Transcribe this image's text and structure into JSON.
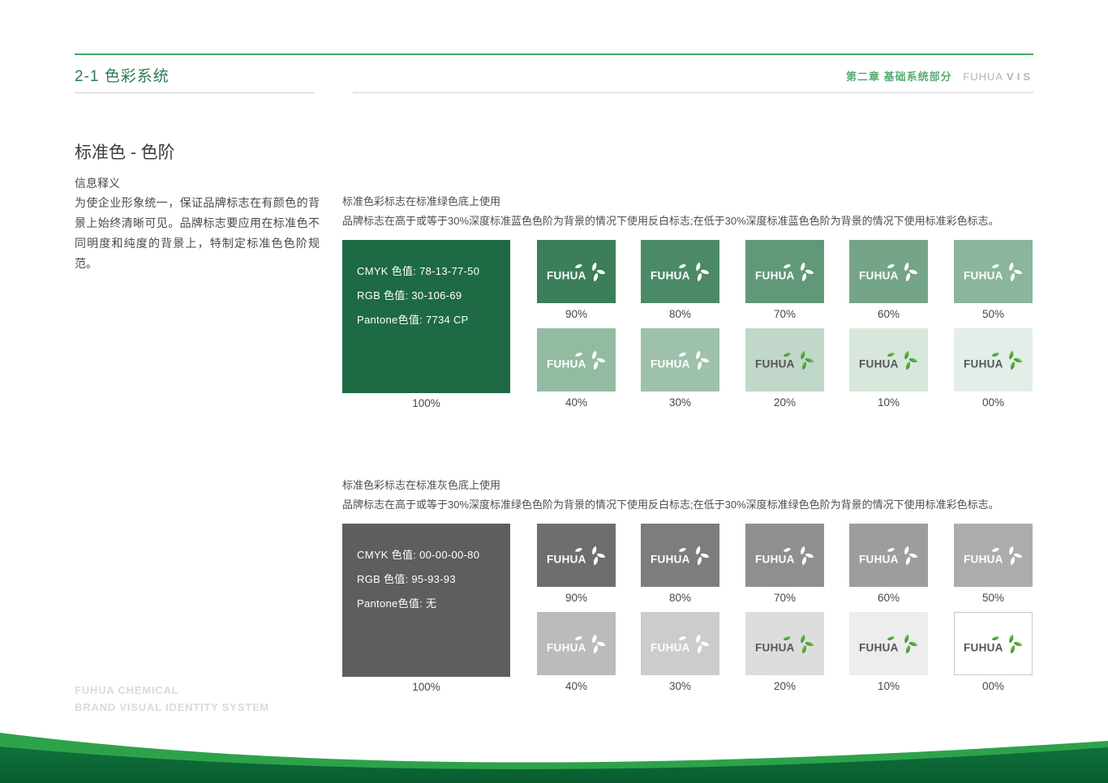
{
  "header": {
    "title": "2-1 色彩系统",
    "chapter": "第二章 基础系统部分",
    "brand_text": "FUHUA",
    "brand_suffix": "VIS"
  },
  "left_panel": {
    "section_title": "标准色 - 色阶",
    "info_label": "信息释义",
    "info_text": "为使企业形象统一，保证品牌标志在有颜色的背景上始终清晰可见。品牌标志要应用在标准色不同明度和纯度的背景上，特制定标准色色阶规范。"
  },
  "brand": {
    "logo_text": "FUHUA"
  },
  "footer": {
    "line1": "FUHUA CHEMICAL",
    "line2": "BRAND VISUAL IDENTITY SYSTEM"
  },
  "colors": {
    "accent_green": "#43a85f",
    "title_green": "#2b7b52",
    "standard_green": "#1E6A45",
    "standard_gray": "#5F5D5D",
    "wave_light_green": "#2ea24b",
    "wave_dark_green": "#0e6b38",
    "leaf_gradient_from": "#a8d23f",
    "leaf_gradient_to": "#00833e",
    "logo_word_dark": "#55565a"
  },
  "groups": [
    {
      "heading": "标准色彩标志在标准绿色底上使用",
      "subheading": "品牌标志在高于或等于30%深度标准蓝色色阶为背景的情况下使用反白标志;在低于30%深度标准蓝色色阶为背景的情况下使用标准彩色标志。",
      "main_swatch": {
        "label": "100%",
        "bg": "#1E6A45",
        "values": [
          "CMYK 色值:  78-13-77-50",
          "RGB  色值:  30-106-69",
          "Pantone色值:  7734 CP"
        ]
      },
      "swatches": [
        {
          "label": "90%",
          "bg": "#3b7e59",
          "logo": "white",
          "border": false
        },
        {
          "label": "80%",
          "bg": "#4c8a67",
          "logo": "white",
          "border": false
        },
        {
          "label": "70%",
          "bg": "#609878",
          "logo": "white",
          "border": false
        },
        {
          "label": "60%",
          "bg": "#74a588",
          "logo": "white",
          "border": false
        },
        {
          "label": "50%",
          "bg": "#8bb59c",
          "logo": "white",
          "border": false
        },
        {
          "label": "40%",
          "bg": "#92bba2",
          "logo": "white",
          "border": false
        },
        {
          "label": "30%",
          "bg": "#9ec1ac",
          "logo": "white",
          "border": false
        },
        {
          "label": "20%",
          "bg": "#c0d7c9",
          "logo": "color",
          "border": false
        },
        {
          "label": "10%",
          "bg": "#d7e7dc",
          "logo": "color",
          "border": false
        },
        {
          "label": "00%",
          "bg": "#e2eee7",
          "logo": "color",
          "border": false
        }
      ]
    },
    {
      "heading": "标准色彩标志在标准灰色底上使用",
      "subheading": "品牌标志在高于或等于30%深度标准绿色色阶为背景的情况下使用反白标志;在低于30%深度标准绿色色阶为背景的情况下使用标准彩色标志。",
      "main_swatch": {
        "label": "100%",
        "bg": "#5F5D5D",
        "values": [
          "CMYK 色值:  00-00-00-80",
          "RGB  色值:  95-93-93",
          "Pantone色值:  无"
        ]
      },
      "swatches": [
        {
          "label": "90%",
          "bg": "#6f6d6d",
          "logo": "white",
          "border": false
        },
        {
          "label": "80%",
          "bg": "#7e7c7c",
          "logo": "white",
          "border": false
        },
        {
          "label": "70%",
          "bg": "#908e8e",
          "logo": "white",
          "border": false
        },
        {
          "label": "60%",
          "bg": "#9e9c9c",
          "logo": "white",
          "border": false
        },
        {
          "label": "50%",
          "bg": "#adacac",
          "logo": "white",
          "border": false
        },
        {
          "label": "40%",
          "bg": "#bcbbbb",
          "logo": "white",
          "border": false
        },
        {
          "label": "30%",
          "bg": "#cdcccc",
          "logo": "white",
          "border": false
        },
        {
          "label": "20%",
          "bg": "#dedddd",
          "logo": "color",
          "border": false
        },
        {
          "label": "10%",
          "bg": "#eeeded",
          "logo": "color",
          "border": false
        },
        {
          "label": "00%",
          "bg": "#ffffff",
          "logo": "color",
          "border": true
        }
      ]
    }
  ]
}
